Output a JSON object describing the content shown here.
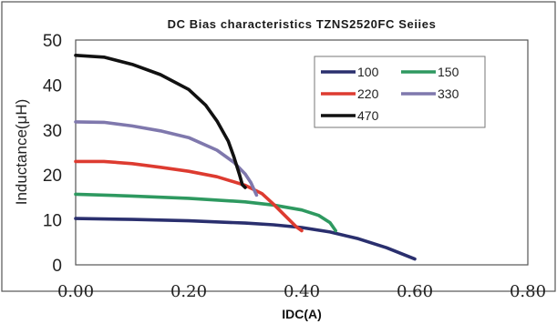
{
  "chart_data": {
    "type": "line",
    "title": "DC Bias characteristics TZNS2520FC Seiies",
    "xlabel": "IDC(A)",
    "ylabel": "Inductance(μH)",
    "xlim": [
      0,
      0.8
    ],
    "ylim": [
      0,
      50
    ],
    "x_ticks": [
      "0.00",
      "0.20",
      "0.40",
      "0.60",
      "0.80"
    ],
    "y_ticks": [
      "0",
      "10",
      "20",
      "30",
      "40",
      "50"
    ],
    "grid": false,
    "legend_position": "top-right",
    "series": [
      {
        "name": "100",
        "color": "#2a2f6e",
        "points": [
          [
            0,
            10.3
          ],
          [
            0.1,
            10.1
          ],
          [
            0.2,
            9.8
          ],
          [
            0.3,
            9.3
          ],
          [
            0.35,
            8.9
          ],
          [
            0.4,
            8.3
          ],
          [
            0.45,
            7.3
          ],
          [
            0.5,
            5.8
          ],
          [
            0.55,
            3.8
          ],
          [
            0.6,
            1.3
          ]
        ]
      },
      {
        "name": "150",
        "color": "#2e9960",
        "points": [
          [
            0,
            15.7
          ],
          [
            0.1,
            15.3
          ],
          [
            0.2,
            14.8
          ],
          [
            0.3,
            14.0
          ],
          [
            0.35,
            13.3
          ],
          [
            0.4,
            12.2
          ],
          [
            0.43,
            11.0
          ],
          [
            0.45,
            9.4
          ],
          [
            0.46,
            7.6
          ]
        ]
      },
      {
        "name": "220",
        "color": "#dd3b30",
        "points": [
          [
            0,
            23.0
          ],
          [
            0.05,
            23.0
          ],
          [
            0.1,
            22.5
          ],
          [
            0.15,
            21.7
          ],
          [
            0.2,
            20.8
          ],
          [
            0.25,
            19.6
          ],
          [
            0.3,
            17.7
          ],
          [
            0.33,
            15.8
          ],
          [
            0.35,
            13.5
          ],
          [
            0.37,
            11.0
          ],
          [
            0.39,
            8.5
          ],
          [
            0.4,
            7.6
          ]
        ]
      },
      {
        "name": "330",
        "color": "#7f78ad",
        "points": [
          [
            0,
            31.8
          ],
          [
            0.05,
            31.7
          ],
          [
            0.1,
            30.9
          ],
          [
            0.15,
            29.8
          ],
          [
            0.2,
            28.3
          ],
          [
            0.25,
            25.5
          ],
          [
            0.28,
            22.8
          ],
          [
            0.3,
            20.2
          ],
          [
            0.31,
            18.3
          ],
          [
            0.32,
            15.5
          ]
        ]
      },
      {
        "name": "470",
        "color": "#111111",
        "points": [
          [
            0,
            46.6
          ],
          [
            0.05,
            46.2
          ],
          [
            0.1,
            44.6
          ],
          [
            0.15,
            42.3
          ],
          [
            0.2,
            39.0
          ],
          [
            0.23,
            35.5
          ],
          [
            0.25,
            32.0
          ],
          [
            0.27,
            27.5
          ],
          [
            0.28,
            24.0
          ],
          [
            0.29,
            20.0
          ],
          [
            0.295,
            17.8
          ],
          [
            0.3,
            17.2
          ]
        ]
      }
    ]
  }
}
